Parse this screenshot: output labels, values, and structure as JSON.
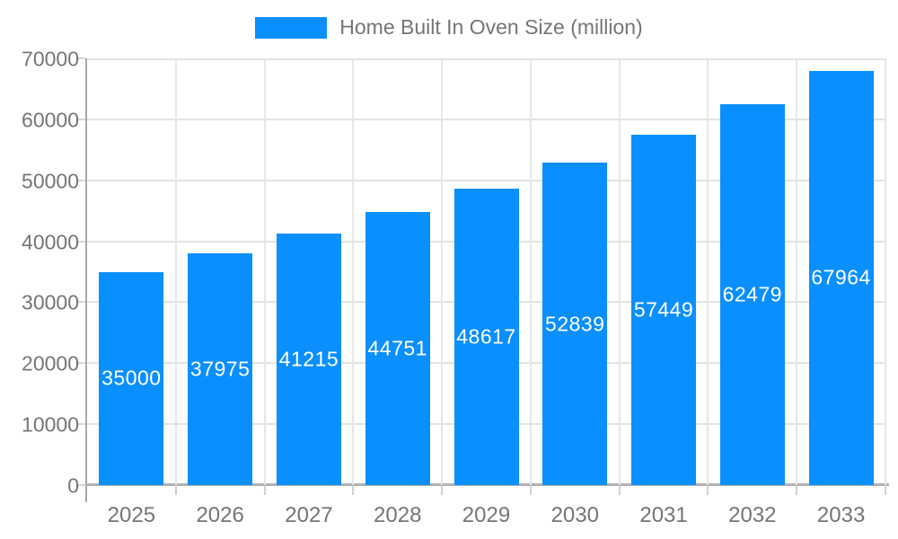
{
  "chart_data": {
    "type": "bar",
    "title": "Home Built In Oven Size (million)",
    "legend": [
      "Home Built In Oven Size (million)"
    ],
    "legend_position": "top-center",
    "categories": [
      "2025",
      "2026",
      "2027",
      "2028",
      "2029",
      "2030",
      "2031",
      "2032",
      "2033"
    ],
    "series": [
      {
        "name": "Home Built In Oven Size (million)",
        "values": [
          35000,
          37975,
          41215,
          44751,
          48617,
          52839,
          57449,
          62479,
          67964
        ]
      }
    ],
    "xlabel": "",
    "ylabel": "",
    "ylim": [
      0,
      70000
    ],
    "yticks": [
      0,
      10000,
      20000,
      30000,
      40000,
      50000,
      60000,
      70000
    ],
    "grid": true,
    "value_labels": "inside-center",
    "colors": {
      "bar": "#0a8fff",
      "value_text": "#ffffff",
      "axis_text": "#757575",
      "gridline": "#e3e3e3",
      "background": "#ffffff"
    }
  }
}
